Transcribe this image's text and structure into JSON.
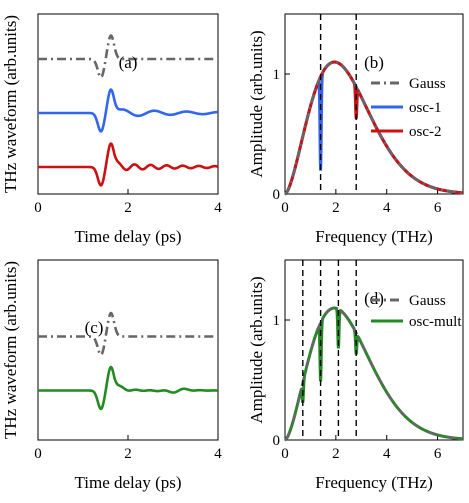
{
  "colors": {
    "gauss": "#666666",
    "osc1": "#3366ee",
    "osc2": "#cc1111",
    "osc_mult": "#228b22",
    "marker": "#000000"
  },
  "chart_data": [
    {
      "panel": "(a)",
      "type": "line",
      "xlabel": "Time delay (ps)",
      "ylabel": "THz waveform (arb.units)",
      "xlim": [
        0,
        4
      ],
      "x_ticks": [
        "0",
        "2",
        "4"
      ],
      "y_ticks": [],
      "grid": false,
      "series": [
        {
          "key": "gauss",
          "style": "dash-dot",
          "offset": 3.0,
          "pulse_center_ps": 1.5,
          "ringing": []
        },
        {
          "key": "osc1",
          "style": "solid",
          "offset": 1.8,
          "pulse_center_ps": 1.5,
          "ringing": [
            {
              "freq_thz": 1.4,
              "amp": 0.16
            }
          ]
        },
        {
          "key": "osc2",
          "style": "solid",
          "offset": 0.6,
          "pulse_center_ps": 1.5,
          "ringing": [
            {
              "freq_thz": 2.8,
              "amp": 0.14
            }
          ]
        }
      ]
    },
    {
      "panel": "(b)",
      "type": "line",
      "xlabel": "Frequency (THz)",
      "ylabel": "Amplitude (arb.units)",
      "xlim": [
        0,
        7
      ],
      "ylim": [
        0,
        1.5
      ],
      "x_ticks": [
        "0",
        "2",
        "4",
        "6"
      ],
      "y_ticks": [
        "0",
        "1"
      ],
      "grid": false,
      "legend_position": "right",
      "peak_thz": 1.45,
      "marker_lines_thz": [
        1.4,
        2.8
      ],
      "series": [
        {
          "key": "gauss",
          "name": "Gauss",
          "style": "dash-dot",
          "dips": []
        },
        {
          "key": "osc1",
          "name": "osc-1",
          "style": "solid",
          "dips": [
            {
              "f": 1.4,
              "depth": 0.8
            }
          ]
        },
        {
          "key": "osc2",
          "name": "osc-2",
          "style": "solid",
          "dips": [
            {
              "f": 2.8,
              "depth": 0.3
            }
          ]
        }
      ]
    },
    {
      "panel": "(c)",
      "type": "line",
      "xlabel": "Time delay (ps)",
      "ylabel": "THz waveform (arb.units)",
      "xlim": [
        0,
        4
      ],
      "x_ticks": [
        "0",
        "2",
        "4"
      ],
      "y_ticks": [],
      "grid": false,
      "series": [
        {
          "key": "gauss",
          "style": "dash-dot",
          "offset": 2.3,
          "pulse_center_ps": 1.5,
          "ringing": []
        },
        {
          "key": "osc_mult",
          "style": "solid",
          "offset": 1.1,
          "pulse_center_ps": 1.5,
          "ringing": [
            {
              "freq_thz": 0.7,
              "amp": 0.06
            },
            {
              "freq_thz": 1.4,
              "amp": 0.06
            },
            {
              "freq_thz": 2.1,
              "amp": 0.06
            },
            {
              "freq_thz": 2.8,
              "amp": 0.05
            }
          ]
        }
      ]
    },
    {
      "panel": "(d)",
      "type": "line",
      "xlabel": "Frequency (THz)",
      "ylabel": "Amplitude (arb.units)",
      "xlim": [
        0,
        7
      ],
      "ylim": [
        0,
        1.5
      ],
      "x_ticks": [
        "0",
        "2",
        "4",
        "6"
      ],
      "y_ticks": [
        "0",
        "1"
      ],
      "grid": false,
      "legend_position": "right",
      "peak_thz": 1.45,
      "marker_lines_thz": [
        0.7,
        1.4,
        2.1,
        2.8
      ],
      "series": [
        {
          "key": "gauss",
          "name": "Gauss",
          "style": "dash-dot",
          "dips": []
        },
        {
          "key": "osc_mult",
          "name": "osc-mult",
          "style": "solid",
          "dips": [
            {
              "f": 0.7,
              "depth": 0.35
            },
            {
              "f": 1.4,
              "depth": 0.5
            },
            {
              "f": 2.1,
              "depth": 0.3
            },
            {
              "f": 2.8,
              "depth": 0.2
            }
          ]
        }
      ]
    }
  ]
}
